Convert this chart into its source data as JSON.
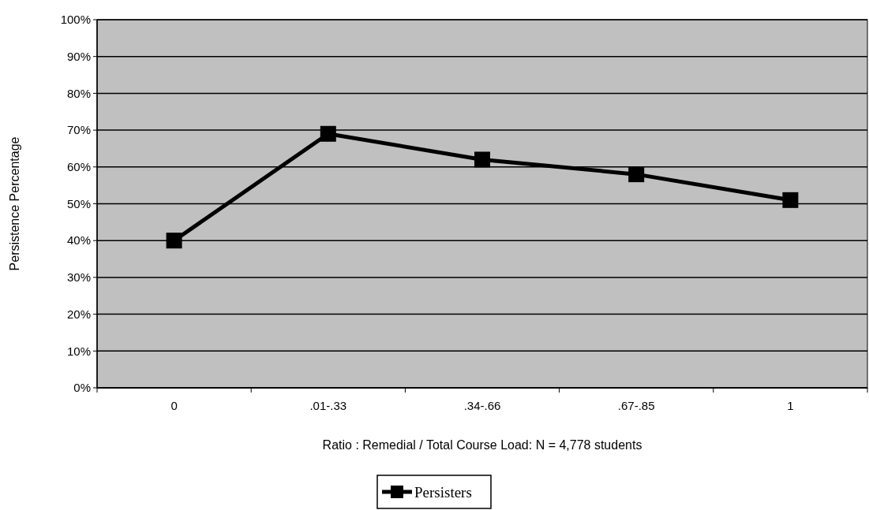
{
  "chart_data": {
    "type": "line",
    "xlabel": "Ratio : Remedial / Total Course Load: N = 4,778 students",
    "ylabel": "Persistence Percentage",
    "categories": [
      "0",
      ".01-.33",
      ".34-.66",
      ".67-.85",
      "1"
    ],
    "series": [
      {
        "name": "Persisters",
        "color": "#000000",
        "values": [
          40,
          69,
          62,
          58,
          51
        ]
      }
    ],
    "ylim": [
      0,
      100
    ],
    "yticks": [
      {
        "value": 0,
        "label": "0%"
      },
      {
        "value": 10,
        "label": "10%"
      },
      {
        "value": 20,
        "label": "20%"
      },
      {
        "value": 30,
        "label": "30%"
      },
      {
        "value": 40,
        "label": "40%"
      },
      {
        "value": 50,
        "label": "50%"
      },
      {
        "value": 60,
        "label": "60%"
      },
      {
        "value": 70,
        "label": "70%"
      },
      {
        "value": 80,
        "label": "80%"
      },
      {
        "value": 90,
        "label": "90%"
      },
      {
        "value": 100,
        "label": "100%"
      }
    ],
    "grid": "y",
    "legend": "bottom",
    "marker": "square",
    "line_style": "solid"
  }
}
